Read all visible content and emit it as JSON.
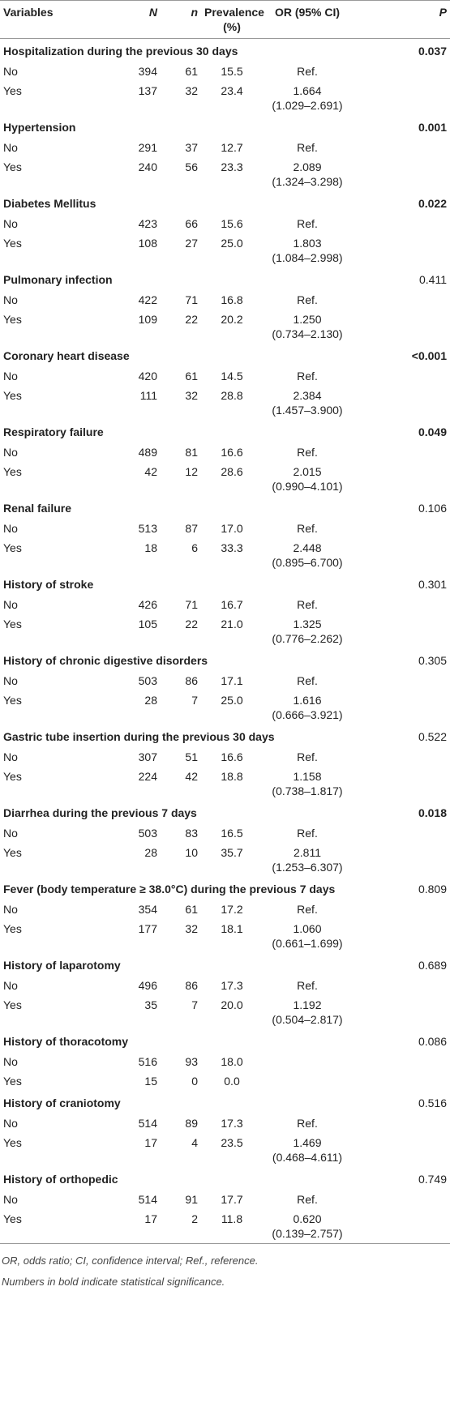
{
  "header": {
    "columns": [
      "Variables",
      "N",
      "n",
      "Prevalence (%)",
      "OR (95% CI)",
      "P"
    ]
  },
  "groups": [
    {
      "variable": "Hospitalization during the previous 30 days",
      "p": "0.037",
      "bold": true,
      "rows": [
        {
          "label": "No",
          "N": "394",
          "n": "61",
          "prevalence": "15.5",
          "or": "Ref."
        },
        {
          "label": "Yes",
          "N": "137",
          "n": "32",
          "prevalence": "23.4",
          "or": "1.664",
          "ci": "(1.029–2.691)"
        }
      ]
    },
    {
      "variable": "Hypertension",
      "p": "0.001",
      "bold": true,
      "rows": [
        {
          "label": "No",
          "N": "291",
          "n": "37",
          "prevalence": "12.7",
          "or": "Ref."
        },
        {
          "label": "Yes",
          "N": "240",
          "n": "56",
          "prevalence": "23.3",
          "or": "2.089",
          "ci": "(1.324–3.298)"
        }
      ]
    },
    {
      "variable": "Diabetes Mellitus",
      "p": "0.022",
      "bold": true,
      "rows": [
        {
          "label": "No",
          "N": "423",
          "n": "66",
          "prevalence": "15.6",
          "or": "Ref."
        },
        {
          "label": "Yes",
          "N": "108",
          "n": "27",
          "prevalence": "25.0",
          "or": "1.803",
          "ci": "(1.084–2.998)"
        }
      ]
    },
    {
      "variable": "Pulmonary infection",
      "p": "0.411",
      "bold": false,
      "rows": [
        {
          "label": "No",
          "N": "422",
          "n": "71",
          "prevalence": "16.8",
          "or": "Ref."
        },
        {
          "label": "Yes",
          "N": "109",
          "n": "22",
          "prevalence": "20.2",
          "or": "1.250",
          "ci": "(0.734–2.130)"
        }
      ]
    },
    {
      "variable": "Coronary heart disease",
      "p": "<0.001",
      "bold": true,
      "rows": [
        {
          "label": "No",
          "N": "420",
          "n": "61",
          "prevalence": "14.5",
          "or": "Ref."
        },
        {
          "label": "Yes",
          "N": "111",
          "n": "32",
          "prevalence": "28.8",
          "or": "2.384",
          "ci": "(1.457–3.900)"
        }
      ]
    },
    {
      "variable": "Respiratory failure",
      "p": "0.049",
      "bold": true,
      "rows": [
        {
          "label": "No",
          "N": "489",
          "n": "81",
          "prevalence": "16.6",
          "or": "Ref."
        },
        {
          "label": "Yes",
          "N": "42",
          "n": "12",
          "prevalence": "28.6",
          "or": "2.015",
          "ci": "(0.990–4.101)"
        }
      ]
    },
    {
      "variable": "Renal failure",
      "p": "0.106",
      "bold": false,
      "rows": [
        {
          "label": "No",
          "N": "513",
          "n": "87",
          "prevalence": "17.0",
          "or": "Ref."
        },
        {
          "label": "Yes",
          "N": "18",
          "n": "6",
          "prevalence": "33.3",
          "or": "2.448",
          "ci": "(0.895–6.700)"
        }
      ]
    },
    {
      "variable": "History of stroke",
      "p": "0.301",
      "bold": false,
      "rows": [
        {
          "label": "No",
          "N": "426",
          "n": "71",
          "prevalence": "16.7",
          "or": "Ref."
        },
        {
          "label": "Yes",
          "N": "105",
          "n": "22",
          "prevalence": "21.0",
          "or": "1.325",
          "ci": "(0.776–2.262)"
        }
      ]
    },
    {
      "variable": "History of chronic digestive disorders",
      "p": "0.305",
      "bold": false,
      "rows": [
        {
          "label": "No",
          "N": "503",
          "n": "86",
          "prevalence": "17.1",
          "or": "Ref."
        },
        {
          "label": "Yes",
          "N": "28",
          "n": "7",
          "prevalence": "25.0",
          "or": "1.616",
          "ci": "(0.666–3.921)"
        }
      ]
    },
    {
      "variable": "Gastric tube insertion during the previous 30 days",
      "p": "0.522",
      "bold": false,
      "rows": [
        {
          "label": "No",
          "N": "307",
          "n": "51",
          "prevalence": "16.6",
          "or": "Ref."
        },
        {
          "label": "Yes",
          "N": "224",
          "n": "42",
          "prevalence": "18.8",
          "or": "1.158",
          "ci": "(0.738–1.817)"
        }
      ]
    },
    {
      "variable": "Diarrhea during the previous 7 days",
      "p": "0.018",
      "bold": true,
      "rows": [
        {
          "label": "No",
          "N": "503",
          "n": "83",
          "prevalence": "16.5",
          "or": "Ref."
        },
        {
          "label": "Yes",
          "N": "28",
          "n": "10",
          "prevalence": "35.7",
          "or": "2.811",
          "ci": "(1.253–6.307)"
        }
      ]
    },
    {
      "variable": "Fever (body temperature ≥ 38.0°C) during the previous 7 days",
      "p": "0.809",
      "bold": false,
      "rows": [
        {
          "label": "No",
          "N": "354",
          "n": "61",
          "prevalence": "17.2",
          "or": "Ref."
        },
        {
          "label": "Yes",
          "N": "177",
          "n": "32",
          "prevalence": "18.1",
          "or": "1.060",
          "ci": "(0.661–1.699)"
        }
      ]
    },
    {
      "variable": "History of laparotomy",
      "p": "0.689",
      "bold": false,
      "rows": [
        {
          "label": "No",
          "N": "496",
          "n": "86",
          "prevalence": "17.3",
          "or": "Ref."
        },
        {
          "label": "Yes",
          "N": "35",
          "n": "7",
          "prevalence": "20.0",
          "or": "1.192",
          "ci": "(0.504–2.817)"
        }
      ]
    },
    {
      "variable": "History of thoracotomy",
      "p": "0.086",
      "bold": false,
      "rows": [
        {
          "label": "No",
          "N": "516",
          "n": "93",
          "prevalence": "18.0"
        },
        {
          "label": "Yes",
          "N": "15",
          "n": "0",
          "prevalence": "0.0"
        }
      ]
    },
    {
      "variable": "History of craniotomy",
      "p": "0.516",
      "bold": false,
      "rows": [
        {
          "label": "No",
          "N": "514",
          "n": "89",
          "prevalence": "17.3",
          "or": "Ref."
        },
        {
          "label": "Yes",
          "N": "17",
          "n": "4",
          "prevalence": "23.5",
          "or": "1.469",
          "ci": "(0.468–4.611)"
        }
      ]
    },
    {
      "variable": "History of orthopedic",
      "p": "0.749",
      "bold": false,
      "rows": [
        {
          "label": "No",
          "N": "514",
          "n": "91",
          "prevalence": "17.7",
          "or": "Ref."
        },
        {
          "label": "Yes",
          "N": "17",
          "n": "2",
          "prevalence": "11.8",
          "or": "0.620",
          "ci": "(0.139–2.757)"
        }
      ]
    }
  ],
  "footnotes": [
    "OR, odds ratio; CI, confidence interval; Ref., reference.",
    "Numbers in bold indicate statistical significance."
  ]
}
